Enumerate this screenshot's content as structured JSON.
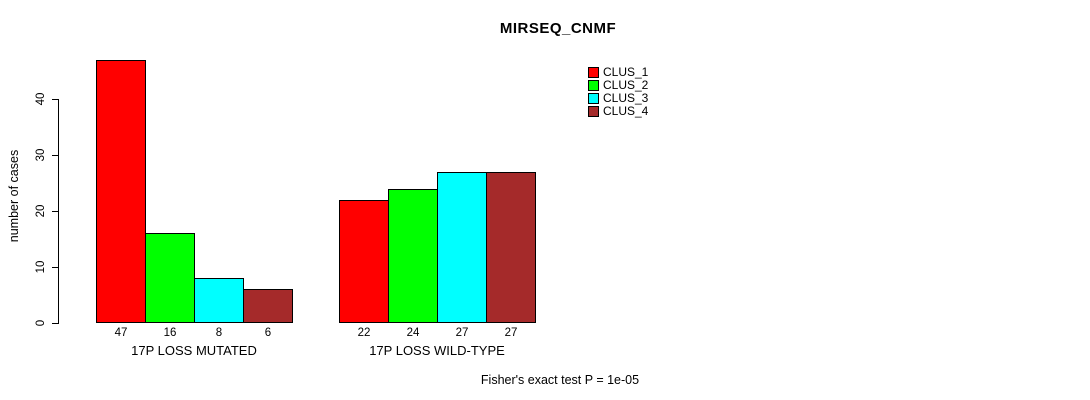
{
  "chart_data": {
    "type": "bar",
    "title": "MIRSEQ_CNMF",
    "xlabel": "",
    "ylabel": "number of cases",
    "categories": [
      "17P LOSS MUTATED",
      "17P LOSS WILD-TYPE"
    ],
    "series": [
      {
        "name": "CLUS_1",
        "color": "#ff0000",
        "values": [
          47,
          22
        ]
      },
      {
        "name": "CLUS_2",
        "color": "#00ff00",
        "values": [
          16,
          24
        ]
      },
      {
        "name": "CLUS_3",
        "color": "#00ffff",
        "values": [
          8,
          27
        ]
      },
      {
        "name": "CLUS_4",
        "color": "#a52a2a",
        "values": [
          6,
          27
        ]
      }
    ],
    "yticks": [
      0,
      10,
      20,
      30,
      40
    ],
    "ylim": [
      0,
      47
    ],
    "grid": false,
    "bar_value_labels": true,
    "legend_position": "top-right",
    "annotation": "Fisher's exact test P = 1e-05"
  }
}
